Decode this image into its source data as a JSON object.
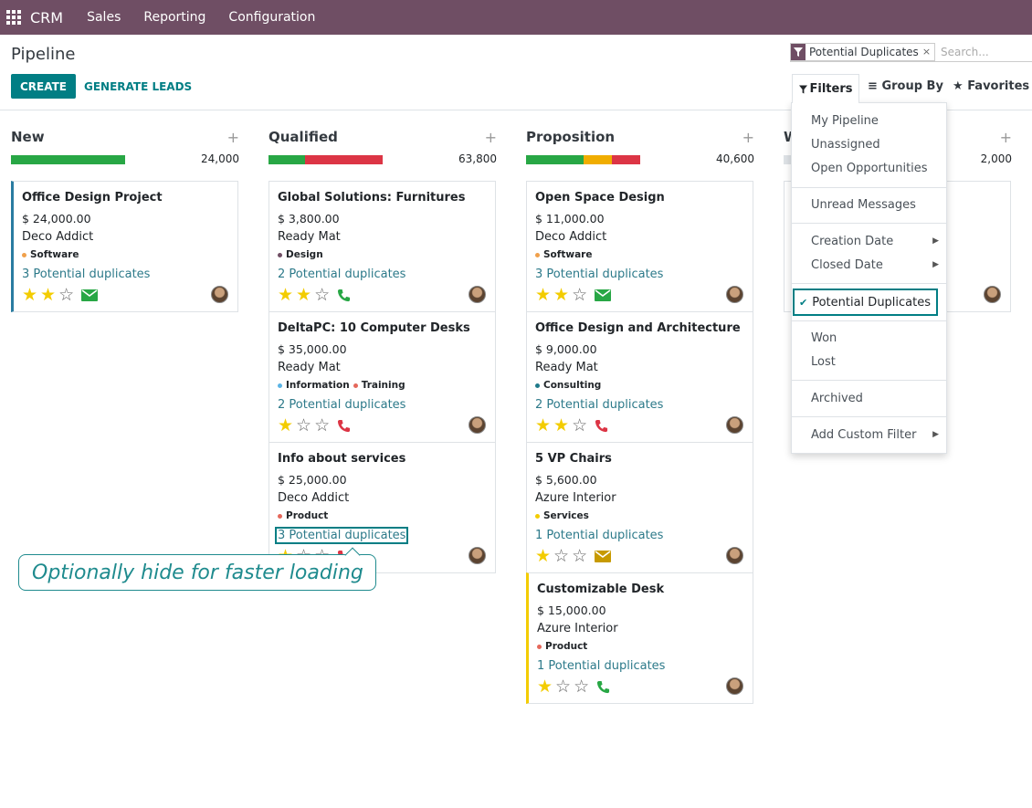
{
  "topbar": {
    "brand": "CRM",
    "menus": [
      "Sales",
      "Reporting",
      "Configuration"
    ]
  },
  "control": {
    "title": "Pipeline",
    "create_label": "CREATE",
    "generate_label": "GENERATE LEADS"
  },
  "search": {
    "facet": "Potential Duplicates",
    "facet_remove": "×",
    "placeholder": "Search..."
  },
  "tabs": {
    "filters": "Filters",
    "group_by": "Group By",
    "favorites": "Favorites"
  },
  "filters_menu": {
    "items": [
      "My Pipeline",
      "Unassigned",
      "Open Opportunities",
      "Unread Messages",
      "Creation Date",
      "Closed Date",
      "Potential Duplicates",
      "Won",
      "Lost",
      "Archived",
      "Add Custom Filter"
    ],
    "selected": "Potential Duplicates"
  },
  "columns": [
    {
      "name": "New",
      "total": "24,000",
      "progress": [
        {
          "color": "#28a745",
          "fraction": 1.0
        }
      ],
      "cards": [
        {
          "title": "Office Design Project",
          "amount": "$ 24,000.00",
          "company": "Deco Addict",
          "tags": [
            {
              "label": "Software",
              "color": "#f0a04b"
            }
          ],
          "duplicates": "3 Potential duplicates",
          "stars": 2,
          "activity": "mail",
          "activity_color": "#28a745",
          "border": "blue"
        }
      ]
    },
    {
      "name": "Qualified",
      "total": "63,800",
      "progress": [
        {
          "color": "#28a745",
          "fraction": 0.32
        },
        {
          "color": "#dc3545",
          "fraction": 0.68
        }
      ],
      "cards": [
        {
          "title": "Global Solutions: Furnitures",
          "amount": "$ 3,800.00",
          "company": "Ready Mat",
          "tags": [
            {
              "label": "Design",
              "color": "#6f4e64"
            }
          ],
          "duplicates": "2 Potential duplicates",
          "stars": 2,
          "activity": "phone",
          "activity_color": "#28a745",
          "border": ""
        },
        {
          "title": "DeltaPC: 10 Computer Desks",
          "amount": "$ 35,000.00",
          "company": "Ready Mat",
          "tags": [
            {
              "label": "Information",
              "color": "#5bb4e5"
            },
            {
              "label": "Training",
              "color": "#e5685b"
            }
          ],
          "duplicates": "2 Potential duplicates",
          "stars": 1,
          "activity": "phone",
          "activity_color": "#dc3545",
          "border": ""
        },
        {
          "title": "Info about services",
          "amount": "$ 25,000.00",
          "company": "Deco Addict",
          "tags": [
            {
              "label": "Product",
              "color": "#e5685b"
            }
          ],
          "duplicates": "3 Potential duplicates",
          "stars": 1,
          "activity": "phone",
          "activity_color": "#dc3545",
          "border": "",
          "boxed": true
        }
      ]
    },
    {
      "name": "Proposition",
      "total": "40,600",
      "progress": [
        {
          "color": "#28a745",
          "fraction": 0.5
        },
        {
          "color": "#f0ad00",
          "fraction": 0.25
        },
        {
          "color": "#dc3545",
          "fraction": 0.25
        }
      ],
      "cards": [
        {
          "title": "Open Space Design",
          "amount": "$ 11,000.00",
          "company": "Deco Addict",
          "tags": [
            {
              "label": "Software",
              "color": "#f0a04b"
            }
          ],
          "duplicates": "3 Potential duplicates",
          "stars": 2,
          "activity": "mail",
          "activity_color": "#28a745",
          "border": ""
        },
        {
          "title": "Office Design and Architecture",
          "amount": "$ 9,000.00",
          "company": "Ready Mat",
          "tags": [
            {
              "label": "Consulting",
              "color": "#1f7a8a"
            }
          ],
          "duplicates": "2 Potential duplicates",
          "stars": 2,
          "activity": "phone",
          "activity_color": "#dc3545",
          "border": ""
        },
        {
          "title": "5 VP Chairs",
          "amount": "$ 5,600.00",
          "company": "Azure Interior",
          "tags": [
            {
              "label": "Services",
              "color": "#f3cc00"
            }
          ],
          "duplicates": "1 Potential duplicates",
          "stars": 1,
          "activity": "mail",
          "activity_color": "#c79a00",
          "border": ""
        },
        {
          "title": "Customizable Desk",
          "amount": "$ 15,000.00",
          "company": "Azure Interior",
          "tags": [
            {
              "label": "Product",
              "color": "#e5685b"
            }
          ],
          "duplicates": "1 Potential duplicates",
          "stars": 1,
          "activity": "phone",
          "activity_color": "#28a745",
          "border": "yellow"
        }
      ]
    },
    {
      "name": "W",
      "total": "2,000",
      "progress": [
        {
          "color": "#dee2e6",
          "fraction": 1.0
        }
      ],
      "cards": [
        {
          "title": "",
          "amount": "",
          "company": "",
          "tags": [],
          "duplicates": "",
          "stars": 0,
          "activity": "",
          "activity_color": "",
          "border": ""
        }
      ]
    }
  ],
  "callout": "Optionally hide for faster loading"
}
